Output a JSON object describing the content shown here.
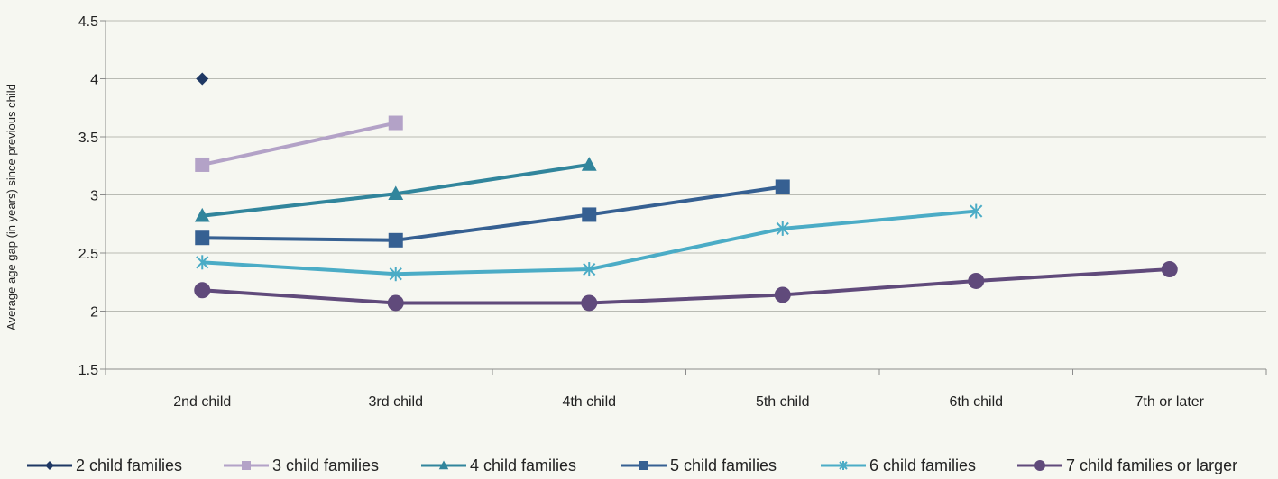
{
  "chart_data": {
    "type": "line",
    "title": "",
    "xlabel": "",
    "ylabel": "Average age gap (in years) since previous child",
    "categories": [
      "2nd child",
      "3rd child",
      "4th child",
      "5th child",
      "6th child",
      "7th or later"
    ],
    "ylim": [
      1.5,
      4.5
    ],
    "yticks": [
      "1.5",
      "2",
      "2.5",
      "3",
      "3.5",
      "4",
      "4.5"
    ],
    "grid": true,
    "legend_position": "bottom",
    "series": [
      {
        "name": "2 child families",
        "color": "#1f3864",
        "marker": "diamond",
        "values": [
          4.0,
          null,
          null,
          null,
          null,
          null
        ]
      },
      {
        "name": "3 child families",
        "color": "#b3a2c7",
        "marker": "square",
        "values": [
          3.26,
          3.62,
          null,
          null,
          null,
          null
        ]
      },
      {
        "name": "4 child families",
        "color": "#31859c",
        "marker": "triangle",
        "values": [
          2.82,
          3.01,
          3.26,
          null,
          null,
          null
        ]
      },
      {
        "name": "5 child families",
        "color": "#366092",
        "marker": "square",
        "values": [
          2.63,
          2.61,
          2.83,
          3.07,
          null,
          null
        ]
      },
      {
        "name": "6 child families",
        "color": "#4bacc6",
        "marker": "star",
        "values": [
          2.42,
          2.32,
          2.36,
          2.71,
          2.86,
          null
        ]
      },
      {
        "name": "7 child families or larger",
        "color": "#604a7b",
        "marker": "circle",
        "values": [
          2.18,
          2.07,
          2.07,
          2.14,
          2.26,
          2.36
        ]
      }
    ]
  }
}
